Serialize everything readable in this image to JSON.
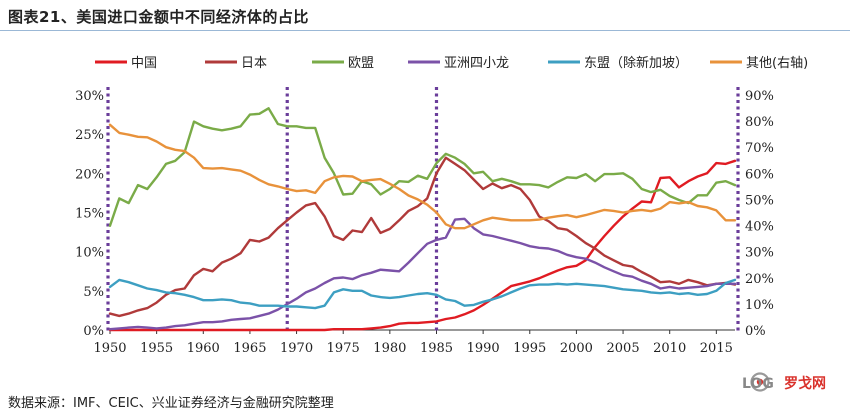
{
  "header": {
    "title": "图表21、美国进口金额中不同经济体的占比"
  },
  "footer": {
    "source": "数据来源：IMF、CEIC、兴业证券经济与金融研究院整理"
  },
  "logo": {
    "text_latin": "LOG",
    "text_cjk": "罗戈网",
    "accent": "#d9312b"
  },
  "chart_data": {
    "type": "line",
    "x": [
      1950,
      1951,
      1952,
      1953,
      1954,
      1955,
      1956,
      1957,
      1958,
      1959,
      1960,
      1961,
      1962,
      1963,
      1964,
      1965,
      1966,
      1967,
      1968,
      1969,
      1970,
      1971,
      1972,
      1973,
      1974,
      1975,
      1976,
      1977,
      1978,
      1979,
      1980,
      1981,
      1982,
      1983,
      1984,
      1985,
      1986,
      1987,
      1988,
      1989,
      1990,
      1991,
      1992,
      1993,
      1994,
      1995,
      1996,
      1997,
      1998,
      1999,
      2000,
      2001,
      2002,
      2003,
      2004,
      2005,
      2006,
      2007,
      2008,
      2009,
      2010,
      2011,
      2012,
      2013,
      2014,
      2015,
      2016,
      2017
    ],
    "xlim": [
      1950,
      2017
    ],
    "xticks": [
      1950,
      1955,
      1960,
      1965,
      1970,
      1975,
      1980,
      1985,
      1990,
      1995,
      2000,
      2005,
      2010,
      2015
    ],
    "left_axis": {
      "min": 0,
      "max": 30,
      "ticks": [
        "0%",
        "5%",
        "10%",
        "15%",
        "20%",
        "25%",
        "30%"
      ]
    },
    "right_axis": {
      "min": 0,
      "max": 90,
      "ticks": [
        "0%",
        "10%",
        "20%",
        "30%",
        "40%",
        "50%",
        "60%",
        "70%",
        "80%",
        "90%"
      ]
    },
    "grid": false,
    "legend_position": "top",
    "vlines": [
      1950,
      1969,
      1985
    ],
    "vline_color": "#6a3d9a",
    "series": [
      {
        "name": "中国",
        "color": "#e01b22",
        "axis": "left",
        "values": [
          0,
          0,
          0,
          0,
          0,
          0,
          0,
          0,
          0,
          0,
          0,
          0,
          0,
          0,
          0,
          0,
          0,
          0,
          0,
          0,
          0,
          0,
          0,
          0,
          0.1,
          0.1,
          0.1,
          0.1,
          0.2,
          0.3,
          0.5,
          0.8,
          0.9,
          0.9,
          1.0,
          1.1,
          1.4,
          1.6,
          2.0,
          2.5,
          3.2,
          4.0,
          4.8,
          5.6,
          5.9,
          6.2,
          6.6,
          7.1,
          7.6,
          8.0,
          8.2,
          8.9,
          10.6,
          12.0,
          13.3,
          14.5,
          15.5,
          16.4,
          16.3,
          19.4,
          19.5,
          18.2,
          19.0,
          19.6,
          20.0,
          21.3,
          21.2,
          21.6
        ]
      },
      {
        "name": "日本",
        "color": "#b03a3a",
        "axis": "left",
        "values": [
          2.1,
          1.8,
          2.1,
          2.5,
          2.8,
          3.5,
          4.5,
          5.1,
          5.3,
          7.0,
          7.8,
          7.5,
          8.6,
          9.1,
          9.8,
          11.5,
          11.3,
          11.8,
          13.0,
          14.0,
          15.0,
          15.9,
          16.2,
          14.5,
          12.0,
          11.5,
          12.7,
          12.5,
          14.3,
          12.4,
          12.9,
          14.0,
          15.2,
          15.8,
          16.8,
          20.0,
          22.0,
          21.2,
          20.4,
          19.2,
          18.0,
          18.7,
          18.1,
          18.5,
          18.0,
          16.6,
          14.5,
          13.9,
          13.0,
          12.8,
          12.0,
          11.1,
          10.4,
          9.5,
          8.9,
          8.3,
          8.1,
          7.4,
          6.8,
          6.1,
          6.2,
          5.9,
          6.4,
          6.1,
          5.7,
          5.9,
          6.0,
          5.8
        ]
      },
      {
        "name": "欧盟",
        "color": "#7aab48",
        "axis": "left",
        "values": [
          13.3,
          16.8,
          16.2,
          18.5,
          18.0,
          19.5,
          21.2,
          21.6,
          22.7,
          26.6,
          26.0,
          25.7,
          25.5,
          25.7,
          26.0,
          27.5,
          27.6,
          28.3,
          26.3,
          26.0,
          26.0,
          25.8,
          25.8,
          22.0,
          20.0,
          17.3,
          17.4,
          19.0,
          18.6,
          17.3,
          18.0,
          19.0,
          18.9,
          19.7,
          19.3,
          21.3,
          22.5,
          22.0,
          21.2,
          20.0,
          20.2,
          19.0,
          19.3,
          19.0,
          18.6,
          18.6,
          18.5,
          18.2,
          18.9,
          19.5,
          19.4,
          19.9,
          19.0,
          19.9,
          19.9,
          20.0,
          19.3,
          18.0,
          17.6,
          17.9,
          17.1,
          16.6,
          16.2,
          17.2,
          17.2,
          18.8,
          19.0,
          18.5
        ]
      },
      {
        "name": "亚洲四小龙",
        "color": "#7b52a8",
        "axis": "left",
        "values": [
          0.1,
          0.2,
          0.3,
          0.4,
          0.3,
          0.2,
          0.3,
          0.5,
          0.6,
          0.8,
          1.0,
          1.0,
          1.1,
          1.3,
          1.4,
          1.5,
          1.8,
          2.1,
          2.6,
          3.3,
          4.0,
          4.8,
          5.3,
          6.0,
          6.6,
          6.7,
          6.5,
          7.0,
          7.3,
          7.7,
          7.6,
          7.5,
          8.6,
          9.8,
          11.0,
          11.5,
          11.8,
          14.1,
          14.2,
          13.0,
          12.2,
          12.0,
          11.7,
          11.4,
          11.1,
          10.7,
          10.5,
          10.4,
          10.1,
          9.6,
          9.3,
          9.1,
          8.6,
          8.0,
          7.5,
          7.0,
          6.8,
          6.3,
          5.9,
          5.3,
          5.5,
          5.3,
          5.4,
          5.5,
          5.6,
          5.9,
          5.9,
          5.9
        ]
      },
      {
        "name": "东盟（除新加坡）",
        "color": "#3d9fc2",
        "axis": "left",
        "values": [
          5.5,
          6.4,
          6.1,
          5.7,
          5.3,
          5.1,
          4.8,
          4.7,
          4.5,
          4.2,
          3.8,
          3.8,
          3.9,
          3.8,
          3.5,
          3.4,
          3.1,
          3.1,
          3.1,
          3.0,
          3.0,
          2.9,
          2.8,
          3.1,
          4.8,
          5.2,
          5.0,
          5.0,
          4.4,
          4.2,
          4.1,
          4.2,
          4.4,
          4.6,
          4.7,
          4.5,
          3.9,
          3.7,
          3.1,
          3.2,
          3.6,
          3.9,
          4.3,
          4.8,
          5.3,
          5.7,
          5.8,
          5.8,
          5.9,
          5.8,
          5.9,
          5.8,
          5.7,
          5.6,
          5.4,
          5.2,
          5.1,
          5.0,
          4.8,
          4.7,
          4.8,
          4.6,
          4.7,
          4.5,
          4.6,
          5.0,
          6.0,
          6.4
        ]
      },
      {
        "name": "其他(右轴)",
        "color": "#e8923b",
        "axis": "right",
        "values": [
          78.6,
          75.5,
          74.8,
          74.0,
          73.8,
          72.2,
          70.0,
          69.0,
          68.5,
          66.0,
          62.0,
          61.8,
          62.0,
          61.5,
          61.0,
          59.5,
          57.5,
          55.8,
          55.0,
          54.0,
          53.2,
          53.5,
          52.5,
          57.0,
          58.5,
          59.0,
          58.8,
          57.0,
          57.5,
          57.8,
          56.0,
          54.0,
          51.5,
          50.0,
          48.0,
          45.0,
          40.5,
          39.0,
          39.0,
          40.5,
          42.0,
          43.0,
          42.5,
          42.0,
          42.0,
          42.0,
          42.3,
          43.0,
          43.6,
          44.0,
          43.2,
          44.0,
          45.0,
          46.0,
          45.6,
          45.0,
          45.6,
          46.0,
          45.5,
          46.5,
          49.0,
          48.5,
          49.0,
          47.5,
          47.0,
          45.8,
          42.0,
          42.0
        ]
      }
    ]
  }
}
